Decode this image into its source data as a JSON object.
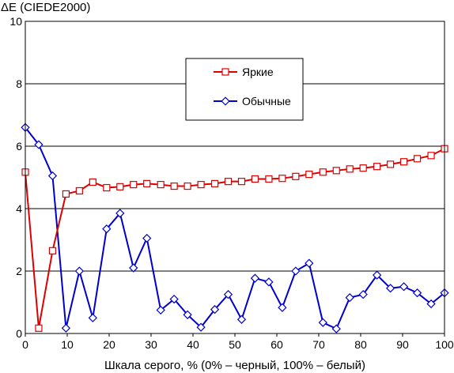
{
  "chart_data": {
    "type": "line",
    "ylabel": "ΔE (CIEDE2000)",
    "xlabel": "Шкала серого, % (0% – черный, 100% – белый)",
    "xlim": [
      0,
      100
    ],
    "ylim": [
      0,
      10
    ],
    "x_ticks": [
      0,
      10,
      20,
      30,
      40,
      50,
      60,
      70,
      80,
      90,
      100
    ],
    "y_ticks": [
      0,
      2,
      4,
      6,
      8,
      10
    ],
    "grid": "horizontal",
    "legend_position": "top-center",
    "x": [
      0,
      3.2,
      6.5,
      9.7,
      12.9,
      16.1,
      19.4,
      22.6,
      25.8,
      29.0,
      32.3,
      35.5,
      38.7,
      41.9,
      45.2,
      48.4,
      51.6,
      54.8,
      58.1,
      61.3,
      64.5,
      67.7,
      71.0,
      74.2,
      77.4,
      80.6,
      83.9,
      87.1,
      90.3,
      93.5,
      96.8,
      100
    ],
    "series": [
      {
        "name": "Яркие",
        "color": "#dd0000",
        "marker": "square",
        "values": [
          5.17,
          0.17,
          2.65,
          4.47,
          4.57,
          4.85,
          4.67,
          4.7,
          4.77,
          4.8,
          4.77,
          4.72,
          4.72,
          4.77,
          4.8,
          4.87,
          4.87,
          4.95,
          4.95,
          4.97,
          5.03,
          5.1,
          5.17,
          5.22,
          5.27,
          5.3,
          5.35,
          5.42,
          5.5,
          5.6,
          5.7,
          5.92
        ]
      },
      {
        "name": "Обычные",
        "color": "#0000cc",
        "marker": "diamond",
        "values": [
          6.6,
          6.05,
          5.05,
          0.17,
          2.0,
          0.5,
          3.35,
          3.85,
          2.1,
          3.05,
          0.75,
          1.1,
          0.6,
          0.2,
          0.77,
          1.25,
          0.45,
          1.77,
          1.65,
          0.83,
          2.0,
          2.25,
          0.35,
          0.15,
          1.15,
          1.25,
          1.87,
          1.45,
          1.5,
          1.3,
          0.95,
          1.3
        ]
      }
    ]
  }
}
